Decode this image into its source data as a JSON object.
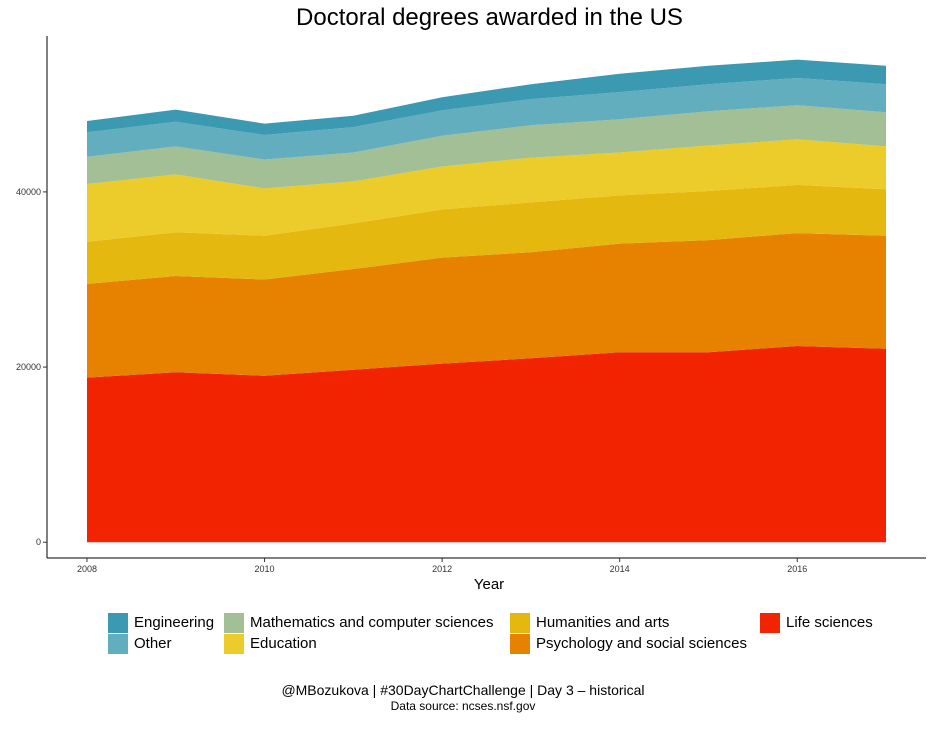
{
  "chart_data": {
    "type": "area",
    "stacked": true,
    "title": "Doctoral degrees awarded in the US",
    "xlabel": "Year",
    "ylabel": "",
    "x": [
      2008,
      2009,
      2010,
      2011,
      2012,
      2013,
      2014,
      2015,
      2016,
      2017
    ],
    "xticks": [
      "2008",
      "2010",
      "2012",
      "2014",
      "2016"
    ],
    "yticks": [
      "0",
      "20000",
      "40000"
    ],
    "ylim": [
      -1800,
      57800
    ],
    "grid": false,
    "legend_position": "bottom",
    "series": [
      {
        "name": "Life sciences",
        "color": "#F22301",
        "values": [
          18800,
          19400,
          19000,
          19700,
          20400,
          21000,
          21700,
          21700,
          22400,
          22100
        ]
      },
      {
        "name": "Psychology and social sciences",
        "color": "#E78100",
        "values": [
          10700,
          11000,
          11000,
          11500,
          12100,
          12100,
          12400,
          12800,
          12900,
          12900
        ]
      },
      {
        "name": "Humanities and arts",
        "color": "#E4B80E",
        "values": [
          4800,
          5000,
          5000,
          5200,
          5500,
          5700,
          5500,
          5600,
          5500,
          5300
        ]
      },
      {
        "name": "Education",
        "color": "#EBCC2A",
        "values": [
          6600,
          6600,
          5400,
          4800,
          4900,
          5100,
          4900,
          5200,
          5200,
          4900
        ]
      },
      {
        "name": "Mathematics and computer sciences",
        "color": "#A2BF95",
        "values": [
          3100,
          3200,
          3300,
          3300,
          3500,
          3700,
          3800,
          3900,
          3900,
          3900
        ]
      },
      {
        "name": "Other",
        "color": "#62AEBF",
        "values": [
          2800,
          2800,
          2800,
          2900,
          2900,
          3000,
          3100,
          3100,
          3100,
          3200
        ]
      },
      {
        "name": "Engineering",
        "color": "#3B9AB2",
        "values": [
          1300,
          1400,
          1300,
          1300,
          1500,
          1700,
          2100,
          2100,
          2100,
          2100
        ]
      }
    ]
  },
  "legend": {
    "items": [
      {
        "label": "Engineering",
        "color": "#3B9AB2"
      },
      {
        "label": "Other",
        "color": "#62AEBF"
      },
      {
        "label": "Mathematics and computer sciences",
        "color": "#A2BF95"
      },
      {
        "label": "Education",
        "color": "#EBCC2A"
      },
      {
        "label": "Humanities and arts",
        "color": "#E4B80E"
      },
      {
        "label": "Psychology and social sciences",
        "color": "#E78100"
      },
      {
        "label": "Life sciences",
        "color": "#F22301"
      }
    ]
  },
  "caption": {
    "main": "@MBozukova | #30DayChartChallenge | Day 3 – historical",
    "sub": "Data source: ncses.nsf.gov"
  }
}
